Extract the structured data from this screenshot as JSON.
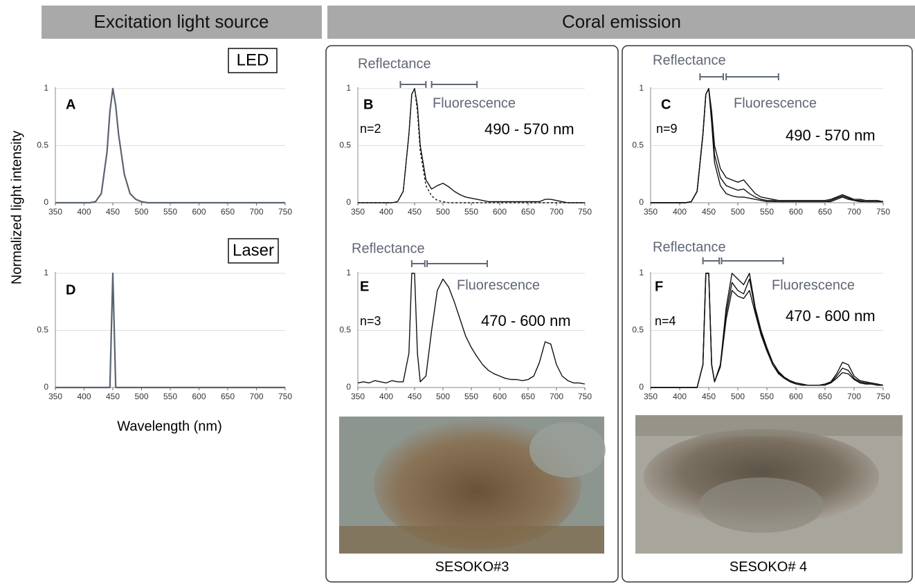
{
  "figure": {
    "left_header": "Excitation light source",
    "right_header": "Coral emission",
    "led_label": "LED",
    "laser_label": "Laser",
    "y_label": "Normalized light intensity",
    "x_label": "Wavelength (nm)",
    "photos": [
      {
        "caption": "SESOKO#3"
      },
      {
        "caption": "SESOKO# 4"
      }
    ]
  },
  "chart_data": [
    {
      "type": "line",
      "panel": "A",
      "xlim": [
        350,
        750
      ],
      "ylim": [
        0,
        1
      ],
      "xticks": [
        350,
        400,
        450,
        500,
        550,
        600,
        650,
        700,
        750
      ],
      "yticks": [
        0,
        0.5,
        1
      ],
      "grid": true,
      "x": [
        350,
        360,
        370,
        380,
        390,
        400,
        410,
        420,
        430,
        440,
        445,
        450,
        455,
        460,
        470,
        480,
        490,
        500,
        510,
        520,
        530,
        540,
        550,
        560,
        570,
        580,
        590,
        600,
        610,
        620,
        630,
        640,
        650,
        660,
        670,
        680,
        690,
        700,
        710,
        720,
        730,
        740,
        750
      ],
      "series": [
        {
          "color": "#5a6370",
          "values": [
            0,
            0,
            0,
            0,
            0,
            0,
            0,
            0.01,
            0.08,
            0.45,
            0.8,
            1,
            0.85,
            0.6,
            0.25,
            0.08,
            0.03,
            0.01,
            0,
            0,
            0,
            0,
            0,
            0,
            0,
            0,
            0,
            0,
            0,
            0,
            0,
            0,
            0,
            0,
            0,
            0,
            0,
            0,
            0,
            0,
            0,
            0,
            0
          ]
        }
      ]
    },
    {
      "type": "line",
      "panel": "B",
      "n_label": "n=2",
      "reflectance_label": "Reflectance",
      "fluorescence_label": "Fluorescence",
      "range_label": "490 - 570 nm",
      "reflectance_range": [
        425,
        470
      ],
      "fluorescence_range": [
        480,
        560
      ],
      "xlim": [
        350,
        750
      ],
      "ylim": [
        0,
        1
      ],
      "xticks": [
        350,
        400,
        450,
        500,
        550,
        600,
        650,
        700,
        750
      ],
      "yticks": [
        0,
        0.5,
        1
      ],
      "grid": true,
      "x": [
        350,
        360,
        370,
        380,
        390,
        400,
        410,
        420,
        430,
        440,
        445,
        450,
        455,
        460,
        470,
        480,
        490,
        500,
        510,
        520,
        530,
        540,
        550,
        560,
        570,
        580,
        590,
        600,
        610,
        620,
        630,
        640,
        650,
        660,
        670,
        680,
        690,
        700,
        710,
        720,
        730,
        740,
        750
      ],
      "series": [
        {
          "color": "#111111",
          "values": [
            0,
            0,
            0,
            0,
            0,
            0,
            0,
            0.01,
            0.1,
            0.6,
            0.95,
            1,
            0.85,
            0.5,
            0.2,
            0.12,
            0.15,
            0.17,
            0.14,
            0.1,
            0.07,
            0.05,
            0.04,
            0.03,
            0.02,
            0.01,
            0.01,
            0.01,
            0.01,
            0.01,
            0.01,
            0.01,
            0.01,
            0.01,
            0.01,
            0.03,
            0.03,
            0.02,
            0.01,
            0,
            0,
            0,
            0
          ]
        },
        {
          "color": "#111111",
          "dash": true,
          "values": [
            0,
            0,
            0,
            0,
            0,
            0,
            0,
            0.01,
            0.1,
            0.6,
            0.95,
            1,
            0.8,
            0.45,
            0.15,
            0.06,
            0.02,
            0.01,
            0,
            0,
            0,
            0,
            0,
            0,
            0,
            0,
            0,
            0,
            0,
            0,
            0,
            0,
            0,
            0,
            0,
            0,
            0,
            0,
            0,
            0,
            0,
            0,
            0
          ]
        }
      ]
    },
    {
      "type": "line",
      "panel": "C",
      "n_label": "n=9",
      "reflectance_label": "Reflectance",
      "fluorescence_label": "Fluorescence",
      "range_label": "490 - 570 nm",
      "reflectance_range": [
        435,
        475
      ],
      "fluorescence_range": [
        480,
        570
      ],
      "xlim": [
        350,
        750
      ],
      "ylim": [
        0,
        1
      ],
      "xticks": [
        350,
        400,
        450,
        500,
        550,
        600,
        650,
        700,
        750
      ],
      "yticks": [
        0,
        0.5,
        1
      ],
      "grid": true,
      "x": [
        350,
        360,
        370,
        380,
        390,
        400,
        410,
        420,
        430,
        440,
        445,
        450,
        455,
        460,
        470,
        480,
        490,
        500,
        510,
        520,
        530,
        540,
        550,
        560,
        570,
        580,
        590,
        600,
        610,
        620,
        630,
        640,
        650,
        660,
        670,
        680,
        690,
        700,
        710,
        720,
        730,
        740,
        750
      ],
      "series": [
        {
          "color": "#111111",
          "values": [
            0,
            0,
            0,
            0,
            0,
            0,
            0,
            0.01,
            0.1,
            0.6,
            0.95,
            1,
            0.8,
            0.5,
            0.3,
            0.22,
            0.2,
            0.18,
            0.2,
            0.14,
            0.08,
            0.05,
            0.04,
            0.03,
            0.02,
            0.02,
            0.02,
            0.02,
            0.02,
            0.02,
            0.02,
            0.02,
            0.02,
            0.03,
            0.05,
            0.07,
            0.05,
            0.03,
            0.03,
            0.02,
            0.02,
            0.02,
            0.01
          ]
        },
        {
          "color": "#111111",
          "values": [
            0,
            0,
            0,
            0,
            0,
            0,
            0,
            0.01,
            0.1,
            0.6,
            0.95,
            1,
            0.75,
            0.42,
            0.22,
            0.15,
            0.13,
            0.11,
            0.12,
            0.08,
            0.05,
            0.03,
            0.02,
            0.02,
            0.01,
            0.01,
            0.01,
            0.01,
            0.01,
            0.01,
            0.01,
            0.01,
            0.01,
            0.02,
            0.04,
            0.06,
            0.04,
            0.02,
            0.02,
            0.01,
            0.01,
            0.01,
            0.01
          ]
        },
        {
          "color": "#111111",
          "values": [
            0,
            0,
            0,
            0,
            0,
            0,
            0,
            0.01,
            0.1,
            0.6,
            0.95,
            1,
            0.7,
            0.35,
            0.15,
            0.08,
            0.06,
            0.05,
            0.05,
            0.04,
            0.03,
            0.02,
            0.01,
            0.01,
            0.01,
            0.01,
            0.01,
            0.01,
            0.01,
            0.01,
            0.01,
            0.01,
            0.01,
            0.01,
            0.03,
            0.05,
            0.03,
            0.02,
            0.01,
            0.01,
            0.01,
            0.01,
            0.01
          ]
        }
      ]
    },
    {
      "type": "line",
      "panel": "D",
      "xlim": [
        350,
        750
      ],
      "ylim": [
        0,
        1
      ],
      "xticks": [
        350,
        400,
        450,
        500,
        550,
        600,
        650,
        700,
        750
      ],
      "yticks": [
        0,
        0.5,
        1
      ],
      "grid": true,
      "x": [
        350,
        360,
        370,
        380,
        390,
        400,
        410,
        420,
        430,
        440,
        445,
        450,
        455,
        460,
        470,
        480,
        490,
        500,
        510,
        520,
        530,
        540,
        550,
        560,
        570,
        580,
        590,
        600,
        610,
        620,
        630,
        640,
        650,
        660,
        670,
        680,
        690,
        700,
        710,
        720,
        730,
        740,
        750
      ],
      "series": [
        {
          "color": "#5a6370",
          "values": [
            0,
            0,
            0,
            0,
            0,
            0,
            0,
            0,
            0,
            0,
            0,
            1,
            0,
            0,
            0,
            0,
            0,
            0,
            0,
            0,
            0,
            0,
            0,
            0,
            0,
            0,
            0,
            0,
            0,
            0,
            0,
            0,
            0,
            0,
            0,
            0,
            0,
            0,
            0,
            0,
            0,
            0,
            0
          ]
        }
      ]
    },
    {
      "type": "line",
      "panel": "E",
      "n_label": "n=3",
      "reflectance_label": "Reflectance",
      "fluorescence_label": "Fluorescence",
      "range_label": "470 - 600 nm",
      "reflectance_range": [
        445,
        468
      ],
      "fluorescence_range": [
        472,
        578
      ],
      "xlim": [
        350,
        750
      ],
      "ylim": [
        0,
        1
      ],
      "xticks": [
        350,
        400,
        450,
        500,
        550,
        600,
        650,
        700,
        750
      ],
      "yticks": [
        0,
        0.5,
        1
      ],
      "grid": true,
      "x": [
        350,
        360,
        370,
        380,
        390,
        400,
        410,
        420,
        430,
        440,
        445,
        450,
        455,
        460,
        470,
        480,
        490,
        500,
        510,
        520,
        530,
        540,
        550,
        560,
        570,
        580,
        590,
        600,
        610,
        620,
        630,
        640,
        650,
        660,
        670,
        680,
        690,
        700,
        710,
        720,
        730,
        740,
        750
      ],
      "series": [
        {
          "color": "#111111",
          "values": [
            0.04,
            0.05,
            0.04,
            0.06,
            0.05,
            0.04,
            0.06,
            0.05,
            0.05,
            0.3,
            1,
            1,
            0.3,
            0.05,
            0.1,
            0.5,
            0.85,
            0.95,
            0.88,
            0.75,
            0.6,
            0.45,
            0.35,
            0.27,
            0.2,
            0.15,
            0.12,
            0.1,
            0.08,
            0.07,
            0.07,
            0.06,
            0.07,
            0.1,
            0.22,
            0.4,
            0.38,
            0.2,
            0.1,
            0.06,
            0.04,
            0.04,
            0.03
          ]
        }
      ]
    },
    {
      "type": "line",
      "panel": "F",
      "n_label": "n=4",
      "reflectance_label": "Reflectance",
      "fluorescence_label": "Fluorescence",
      "range_label": "470 - 600 nm",
      "reflectance_range": [
        440,
        468
      ],
      "fluorescence_range": [
        472,
        578
      ],
      "xlim": [
        350,
        750
      ],
      "ylim": [
        0,
        1
      ],
      "xticks": [
        350,
        400,
        450,
        500,
        550,
        600,
        650,
        700,
        750
      ],
      "yticks": [
        0,
        0.5,
        1
      ],
      "grid": true,
      "x": [
        350,
        360,
        370,
        380,
        390,
        400,
        410,
        420,
        430,
        440,
        445,
        450,
        455,
        460,
        470,
        480,
        490,
        500,
        510,
        520,
        530,
        540,
        550,
        560,
        570,
        580,
        590,
        600,
        610,
        620,
        630,
        640,
        650,
        660,
        670,
        680,
        690,
        700,
        710,
        720,
        730,
        740,
        750
      ],
      "series": [
        {
          "color": "#111111",
          "values": [
            0,
            0,
            0,
            0,
            0,
            0,
            0,
            0,
            0,
            0.2,
            1,
            1,
            0.2,
            0.05,
            0.2,
            0.7,
            1,
            0.95,
            0.9,
            1,
            0.7,
            0.5,
            0.35,
            0.22,
            0.14,
            0.09,
            0.06,
            0.04,
            0.03,
            0.02,
            0.02,
            0.02,
            0.03,
            0.05,
            0.12,
            0.22,
            0.2,
            0.1,
            0.06,
            0.05,
            0.04,
            0.03,
            0.02
          ]
        },
        {
          "color": "#111111",
          "values": [
            0,
            0,
            0,
            0,
            0,
            0,
            0,
            0,
            0,
            0.2,
            1,
            1,
            0.2,
            0.05,
            0.2,
            0.65,
            0.92,
            0.85,
            0.82,
            0.95,
            0.68,
            0.48,
            0.33,
            0.2,
            0.13,
            0.08,
            0.05,
            0.04,
            0.03,
            0.02,
            0.02,
            0.02,
            0.03,
            0.04,
            0.1,
            0.17,
            0.15,
            0.08,
            0.05,
            0.04,
            0.03,
            0.02,
            0.02
          ]
        },
        {
          "color": "#111111",
          "values": [
            0,
            0,
            0,
            0,
            0,
            0,
            0,
            0,
            0,
            0.2,
            1,
            1,
            0.2,
            0.05,
            0.18,
            0.6,
            0.85,
            0.8,
            0.78,
            0.85,
            0.65,
            0.46,
            0.32,
            0.2,
            0.12,
            0.08,
            0.05,
            0.03,
            0.02,
            0.02,
            0.02,
            0.02,
            0.02,
            0.04,
            0.08,
            0.13,
            0.12,
            0.07,
            0.04,
            0.03,
            0.03,
            0.02,
            0.02
          ]
        }
      ]
    }
  ]
}
